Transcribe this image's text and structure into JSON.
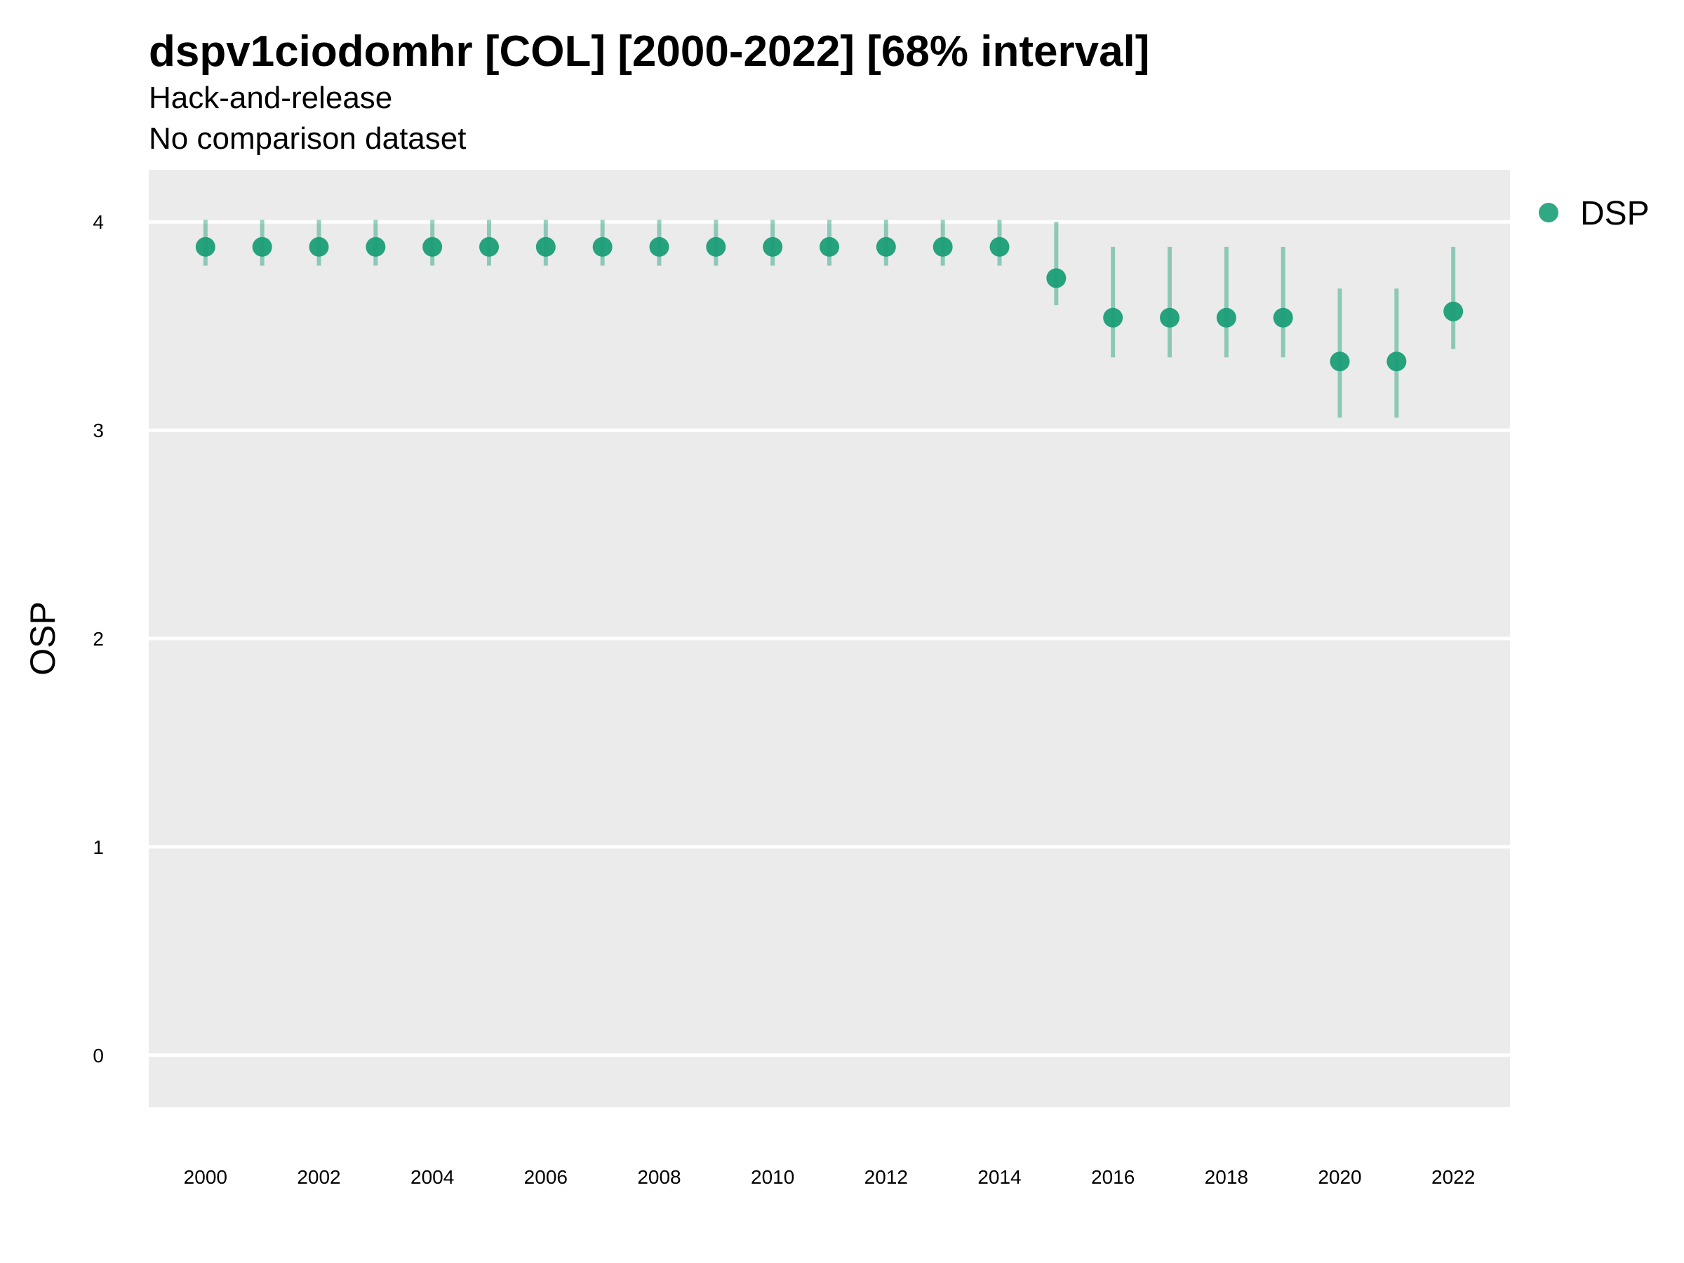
{
  "chart_data": {
    "type": "scatter",
    "title": "dspv1ciodomhr [COL] [2000-2022] [68% interval]",
    "subtitle": "Hack-and-release",
    "subtitle2": "No comparison dataset",
    "xlabel": "",
    "ylabel": "OSP",
    "xlim": [
      1999,
      2023
    ],
    "ylim": [
      -0.25,
      4.25
    ],
    "x_ticks": [
      "2000",
      "2002",
      "2004",
      "2006",
      "2008",
      "2010",
      "2012",
      "2014",
      "2016",
      "2018",
      "2020",
      "2022"
    ],
    "y_ticks": [
      "0",
      "1",
      "2",
      "3",
      "4"
    ],
    "grid": true,
    "legend_position": "right",
    "series": [
      {
        "name": "DSP",
        "color": "#1b9e77",
        "x": [
          2000,
          2001,
          2002,
          2003,
          2004,
          2005,
          2006,
          2007,
          2008,
          2009,
          2010,
          2011,
          2012,
          2013,
          2014,
          2015,
          2016,
          2017,
          2018,
          2019,
          2020,
          2021,
          2022
        ],
        "y": [
          3.88,
          3.88,
          3.88,
          3.88,
          3.88,
          3.88,
          3.88,
          3.88,
          3.88,
          3.88,
          3.88,
          3.88,
          3.88,
          3.88,
          3.88,
          3.73,
          3.54,
          3.54,
          3.54,
          3.54,
          3.33,
          3.33,
          3.57
        ],
        "lower": [
          3.79,
          3.79,
          3.79,
          3.79,
          3.79,
          3.79,
          3.79,
          3.79,
          3.79,
          3.79,
          3.79,
          3.79,
          3.79,
          3.79,
          3.79,
          3.6,
          3.35,
          3.35,
          3.35,
          3.35,
          3.06,
          3.06,
          3.39
        ],
        "upper": [
          4.01,
          4.01,
          4.01,
          4.01,
          4.01,
          4.01,
          4.01,
          4.01,
          4.01,
          4.01,
          4.01,
          4.01,
          4.01,
          4.01,
          4.01,
          4.0,
          3.88,
          3.88,
          3.88,
          3.88,
          3.68,
          3.68,
          3.88
        ]
      }
    ]
  }
}
